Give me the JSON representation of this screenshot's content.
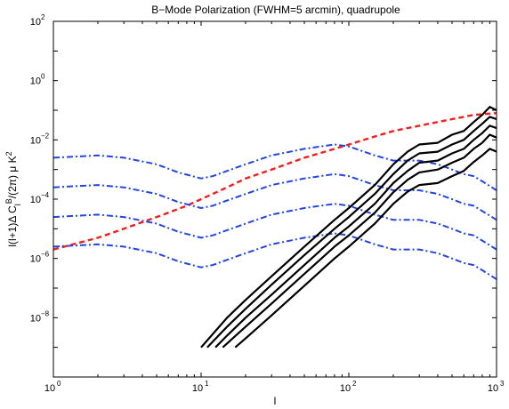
{
  "chart_data": {
    "type": "line",
    "title": "B−Mode Polarization (FWHM=5 arcmin), quadrupole",
    "xlabel": "l",
    "ylabel": "l(l+1)Δ C_l^B/(2π) μ K^2",
    "x_scale": "log",
    "y_scale": "log",
    "xlim": [
      1,
      1000
    ],
    "ylim": [
      1e-10,
      100
    ],
    "x_tick_labels": [
      {
        "base": "10",
        "exp": "0"
      },
      {
        "base": "10",
        "exp": "1"
      },
      {
        "base": "10",
        "exp": "2"
      },
      {
        "base": "10",
        "exp": "3"
      }
    ],
    "y_tick_labels": [
      {
        "base": "10",
        "exp": "−8"
      },
      {
        "base": "10",
        "exp": "−6"
      },
      {
        "base": "10",
        "exp": "−4"
      },
      {
        "base": "10",
        "exp": "−2"
      },
      {
        "base": "10",
        "exp": "0"
      },
      {
        "base": "10",
        "exp": "2"
      }
    ],
    "grid": false,
    "colors": {
      "solid": "#000000",
      "dashed": "#ff1a1a",
      "dashdot": "#2244ee"
    },
    "series": [
      {
        "style": "dashed",
        "color": "#ff1a1a",
        "x": [
          1,
          2,
          3,
          5,
          8,
          10,
          15,
          20,
          30,
          50,
          80,
          100,
          150,
          200,
          300,
          500,
          700,
          1000
        ],
        "y": [
          2e-06,
          5e-06,
          1e-05,
          2.5e-05,
          6e-05,
          0.0001,
          0.00025,
          0.0005,
          0.001,
          0.0025,
          0.005,
          0.007,
          0.013,
          0.02,
          0.03,
          0.05,
          0.07,
          0.08
        ]
      },
      {
        "style": "dashdot",
        "color": "#2244ee",
        "x": [
          1,
          2,
          3,
          5,
          7,
          10,
          12,
          15,
          20,
          30,
          50,
          80,
          100,
          150,
          200,
          300,
          400,
          500,
          600,
          700,
          800,
          1000
        ],
        "y": [
          0.0025,
          0.003,
          0.0025,
          0.0015,
          0.0008,
          0.0005,
          0.0006,
          0.0009,
          0.0015,
          0.003,
          0.005,
          0.007,
          0.006,
          0.003,
          0.002,
          0.002,
          0.0015,
          0.001,
          0.0007,
          0.0006,
          0.0004,
          0.0002
        ]
      },
      {
        "style": "dashdot",
        "color": "#2244ee",
        "x": [
          1,
          2,
          3,
          5,
          7,
          10,
          12,
          15,
          20,
          30,
          50,
          80,
          100,
          150,
          200,
          300,
          400,
          500,
          600,
          700,
          800,
          1000
        ],
        "y": [
          0.00025,
          0.0003,
          0.00025,
          0.00015,
          8e-05,
          5e-05,
          6e-05,
          9e-05,
          0.00015,
          0.0003,
          0.0005,
          0.0007,
          0.0006,
          0.0003,
          0.0002,
          0.0002,
          0.00015,
          0.0001,
          7e-05,
          6e-05,
          4e-05,
          2e-05
        ]
      },
      {
        "style": "dashdot",
        "color": "#2244ee",
        "x": [
          1,
          2,
          3,
          5,
          7,
          10,
          12,
          15,
          20,
          30,
          50,
          80,
          100,
          150,
          200,
          300,
          400,
          500,
          600,
          700,
          800,
          1000
        ],
        "y": [
          2.5e-05,
          3e-05,
          2.5e-05,
          1.5e-05,
          8e-06,
          5e-06,
          6e-06,
          9e-06,
          1.5e-05,
          3e-05,
          5e-05,
          7e-05,
          6e-05,
          3e-05,
          2e-05,
          2e-05,
          1.5e-05,
          1e-05,
          7e-06,
          6e-06,
          4e-06,
          2e-06
        ]
      },
      {
        "style": "dashdot",
        "color": "#2244ee",
        "x": [
          1,
          2,
          3,
          5,
          7,
          10,
          12,
          15,
          20,
          30,
          50,
          80,
          100,
          150,
          200,
          300,
          400,
          500,
          600,
          700,
          800,
          1000
        ],
        "y": [
          2.5e-06,
          3e-06,
          2.5e-06,
          1.5e-06,
          8e-07,
          5e-07,
          6e-07,
          9e-07,
          1.5e-06,
          3e-06,
          5e-06,
          7e-06,
          6e-06,
          3e-06,
          2e-06,
          2e-06,
          1.5e-06,
          1e-06,
          7e-07,
          6e-07,
          4e-07,
          2e-07
        ]
      },
      {
        "style": "solid",
        "color": "#000000",
        "x": [
          10,
          15,
          20,
          30,
          50,
          80,
          100,
          150,
          200,
          250,
          300,
          400,
          500,
          600,
          700,
          800,
          900,
          1000
        ],
        "y": [
          1e-09,
          1e-08,
          4e-08,
          2.5e-07,
          2.5e-06,
          2e-05,
          5e-05,
          0.0003,
          0.0015,
          0.004,
          0.007,
          0.008,
          0.015,
          0.02,
          0.04,
          0.07,
          0.13,
          0.1
        ]
      },
      {
        "style": "solid",
        "color": "#000000",
        "x": [
          11,
          15,
          20,
          30,
          50,
          80,
          100,
          150,
          200,
          250,
          300,
          400,
          500,
          600,
          700,
          800,
          900,
          1000
        ],
        "y": [
          1e-09,
          5e-09,
          2e-08,
          1.3e-07,
          1.3e-06,
          1e-05,
          2.5e-05,
          0.00015,
          0.0007,
          0.002,
          0.0035,
          0.004,
          0.007,
          0.01,
          0.02,
          0.035,
          0.06,
          0.05
        ]
      },
      {
        "style": "solid",
        "color": "#000000",
        "x": [
          12.5,
          15,
          20,
          30,
          50,
          80,
          100,
          150,
          200,
          250,
          300,
          400,
          500,
          600,
          700,
          800,
          900,
          1000
        ],
        "y": [
          1e-09,
          2.5e-09,
          1e-08,
          6e-08,
          6e-07,
          5e-06,
          1.2e-05,
          7e-05,
          0.00035,
          0.0009,
          0.0017,
          0.002,
          0.0035,
          0.005,
          0.01,
          0.017,
          0.03,
          0.025
        ]
      },
      {
        "style": "solid",
        "color": "#000000",
        "x": [
          14,
          20,
          30,
          50,
          80,
          100,
          150,
          200,
          250,
          300,
          400,
          500,
          600,
          700,
          800,
          900,
          1000
        ],
        "y": [
          1e-09,
          5e-09,
          3e-08,
          3e-07,
          2.5e-06,
          6e-06,
          3.5e-05,
          0.00017,
          0.00045,
          0.0008,
          0.001,
          0.0017,
          0.0025,
          0.005,
          0.008,
          0.015,
          0.012
        ]
      },
      {
        "style": "solid",
        "color": "#000000",
        "x": [
          17,
          20,
          30,
          50,
          80,
          100,
          150,
          200,
          250,
          300,
          400,
          500,
          600,
          700,
          800,
          900,
          1000
        ],
        "y": [
          1e-09,
          2e-09,
          1.2e-08,
          1.2e-07,
          1e-06,
          2.5e-06,
          1.5e-05,
          7e-05,
          0.00018,
          0.0003,
          0.00035,
          0.0006,
          0.0009,
          0.0018,
          0.003,
          0.005,
          0.004
        ]
      }
    ]
  }
}
